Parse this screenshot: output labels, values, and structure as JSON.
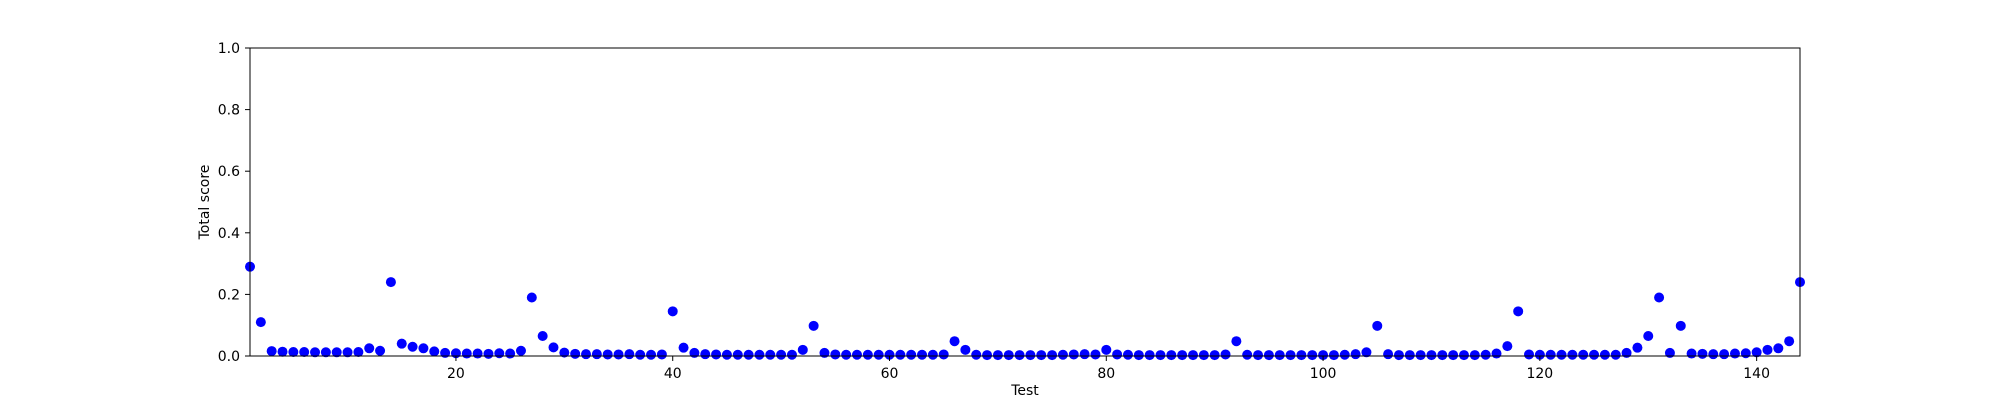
{
  "chart_data": {
    "type": "scatter",
    "xlabel": "Test",
    "ylabel": "Total score",
    "xlim": [
      1,
      144
    ],
    "ylim": [
      0.0,
      1.0
    ],
    "x_ticks": [
      20,
      40,
      60,
      80,
      100,
      120,
      140
    ],
    "y_ticks": [
      "0.0",
      "0.2",
      "0.4",
      "0.6",
      "0.8",
      "1.0"
    ],
    "grid": false,
    "marker_color": "#0000ff",
    "x": [
      1,
      2,
      3,
      4,
      5,
      6,
      7,
      8,
      9,
      10,
      11,
      12,
      13,
      14,
      15,
      16,
      17,
      18,
      19,
      20,
      21,
      22,
      23,
      24,
      25,
      26,
      27,
      28,
      29,
      30,
      31,
      32,
      33,
      34,
      35,
      36,
      37,
      38,
      39,
      40,
      41,
      42,
      43,
      44,
      45,
      46,
      47,
      48,
      49,
      50,
      51,
      52,
      53,
      54,
      55,
      56,
      57,
      58,
      59,
      60,
      61,
      62,
      63,
      64,
      65,
      66,
      67,
      68,
      69,
      70,
      71,
      72,
      73,
      74,
      75,
      76,
      77,
      78,
      79,
      80,
      81,
      82,
      83,
      84,
      85,
      86,
      87,
      88,
      89,
      90,
      91,
      92,
      93,
      94,
      95,
      96,
      97,
      98,
      99,
      100,
      101,
      102,
      103,
      104,
      105,
      106,
      107,
      108,
      109,
      110,
      111,
      112,
      113,
      114,
      115,
      116,
      117,
      118,
      119,
      120,
      121,
      122,
      123,
      124,
      125,
      126,
      127,
      128,
      129,
      130,
      131,
      132,
      133,
      134,
      135,
      136,
      137,
      138,
      139,
      140,
      141,
      142,
      143,
      144
    ],
    "y": [
      0.29,
      0.11,
      0.016,
      0.014,
      0.013,
      0.013,
      0.012,
      0.012,
      0.012,
      0.012,
      0.013,
      0.025,
      0.017,
      0.24,
      0.04,
      0.03,
      0.025,
      0.015,
      0.01,
      0.009,
      0.008,
      0.008,
      0.007,
      0.009,
      0.008,
      0.017,
      0.19,
      0.065,
      0.028,
      0.011,
      0.007,
      0.006,
      0.006,
      0.005,
      0.005,
      0.006,
      0.004,
      0.004,
      0.005,
      0.145,
      0.027,
      0.01,
      0.006,
      0.005,
      0.004,
      0.004,
      0.004,
      0.004,
      0.004,
      0.004,
      0.004,
      0.02,
      0.098,
      0.01,
      0.005,
      0.004,
      0.004,
      0.004,
      0.004,
      0.004,
      0.004,
      0.004,
      0.004,
      0.004,
      0.005,
      0.048,
      0.02,
      0.004,
      0.003,
      0.003,
      0.003,
      0.003,
      0.003,
      0.003,
      0.003,
      0.004,
      0.005,
      0.006,
      0.005,
      0.02,
      0.005,
      0.004,
      0.003,
      0.003,
      0.003,
      0.003,
      0.003,
      0.003,
      0.003,
      0.003,
      0.005,
      0.048,
      0.004,
      0.003,
      0.003,
      0.003,
      0.003,
      0.003,
      0.003,
      0.003,
      0.003,
      0.004,
      0.006,
      0.012,
      0.098,
      0.006,
      0.003,
      0.003,
      0.003,
      0.003,
      0.003,
      0.003,
      0.003,
      0.003,
      0.004,
      0.008,
      0.032,
      0.145,
      0.005,
      0.004,
      0.004,
      0.004,
      0.004,
      0.004,
      0.004,
      0.004,
      0.004,
      0.01,
      0.027,
      0.065,
      0.19,
      0.01,
      0.098,
      0.008,
      0.007,
      0.006,
      0.006,
      0.008,
      0.009,
      0.012,
      0.02,
      0.025,
      0.048,
      0.24
    ]
  }
}
